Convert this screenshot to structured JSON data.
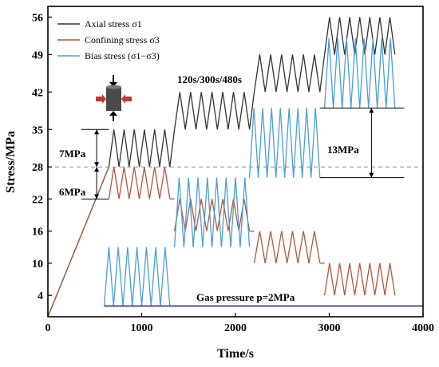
{
  "chart_data": {
    "type": "line",
    "xlabel": "Time/s",
    "ylabel": "Stress/MPa",
    "xlim": [
      0,
      4000
    ],
    "ylim": [
      0,
      58
    ],
    "x_ticks": [
      0,
      1000,
      2000,
      3000,
      4000
    ],
    "y_ticks": [
      4,
      10,
      16,
      22,
      28,
      35,
      42,
      49,
      56
    ],
    "legend_position": "top-left",
    "reference_line": {
      "y": 28,
      "style": "dashed"
    },
    "series": [
      {
        "name": "Axial stress σ1",
        "color": "#333333",
        "segments": [
          {
            "kind": "ramp",
            "x": [
              0,
              650
            ],
            "y": [
              0,
              28
            ]
          },
          {
            "kind": "cycles",
            "x": [
              650,
              1300
            ],
            "y_low": 28,
            "y_high": 35,
            "count": 6
          },
          {
            "kind": "ramp",
            "x": [
              1300,
              1350
            ],
            "y": [
              28,
              35
            ]
          },
          {
            "kind": "cycles",
            "x": [
              1350,
              2150
            ],
            "y_low": 35,
            "y_high": 42,
            "count": 7
          },
          {
            "kind": "ramp",
            "x": [
              2150,
              2200
            ],
            "y": [
              35,
              42
            ]
          },
          {
            "kind": "cycles",
            "x": [
              2200,
              2900
            ],
            "y_low": 42,
            "y_high": 49,
            "count": 6
          },
          {
            "kind": "ramp",
            "x": [
              2900,
              2950
            ],
            "y": [
              42,
              49
            ]
          },
          {
            "kind": "cycles",
            "x": [
              2950,
              3700
            ],
            "y_low": 49,
            "y_high": 56,
            "count": 7
          }
        ]
      },
      {
        "name": "Confining stress σ3",
        "color": "#b5553a",
        "segments": [
          {
            "kind": "ramp",
            "x": [
              0,
              650
            ],
            "y": [
              0,
              28
            ]
          },
          {
            "kind": "cycles",
            "x": [
              650,
              1300
            ],
            "y_low": 22,
            "y_high": 28,
            "count": 6
          },
          {
            "kind": "ramp",
            "x": [
              1300,
              1350
            ],
            "y": [
              22,
              22
            ]
          },
          {
            "kind": "cycles",
            "x": [
              1350,
              2150
            ],
            "y_low": 16,
            "y_high": 22,
            "count": 7
          },
          {
            "kind": "ramp",
            "x": [
              2150,
              2200
            ],
            "y": [
              16,
              16
            ]
          },
          {
            "kind": "cycles",
            "x": [
              2200,
              2900
            ],
            "y_low": 10,
            "y_high": 16,
            "count": 6
          },
          {
            "kind": "ramp",
            "x": [
              2900,
              2950
            ],
            "y": [
              10,
              10
            ]
          },
          {
            "kind": "cycles",
            "x": [
              2950,
              3700
            ],
            "y_low": 4,
            "y_high": 10,
            "count": 7
          }
        ]
      },
      {
        "name": "Bias stress (σ1−σ3)",
        "color": "#4a9ed8",
        "segments": [
          {
            "kind": "cycles",
            "x": [
              600,
              1300
            ],
            "y_low": 2,
            "y_high": 13,
            "count": 7
          },
          {
            "kind": "cycles",
            "x": [
              1350,
              2150
            ],
            "y_low": 13,
            "y_high": 26,
            "count": 8
          },
          {
            "kind": "cycles",
            "x": [
              2150,
              2900
            ],
            "y_low": 26,
            "y_high": 39,
            "count": 8
          },
          {
            "kind": "cycles",
            "x": [
              2950,
              3700
            ],
            "y_low": 39,
            "y_high": 52,
            "count": 8
          }
        ]
      },
      {
        "name": "Gas pressure",
        "color": "#2e2e8c",
        "segments": [
          {
            "kind": "flat",
            "x": [
              600,
              4000
            ],
            "y": 2
          }
        ]
      }
    ],
    "annotations": [
      {
        "text": "120s/300s/480s"
      },
      {
        "text": "7MPa"
      },
      {
        "text": "6MPa"
      },
      {
        "text": "13MPa"
      },
      {
        "text": "Gas pressure p=2MPa"
      }
    ]
  }
}
